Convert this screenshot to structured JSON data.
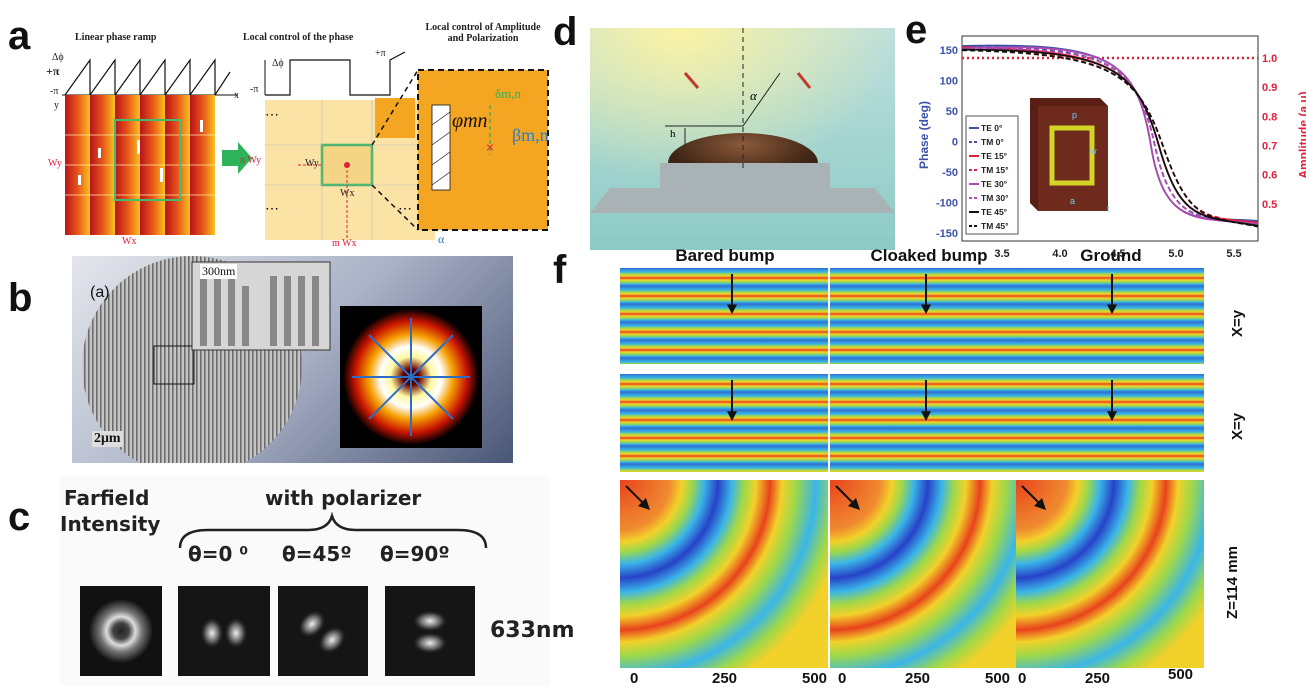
{
  "panel_labels": {
    "a": "a",
    "b": "b",
    "c": "c",
    "d": "d",
    "e": "e",
    "f": "f"
  },
  "panel_a": {
    "title1": "Linear phase ramp",
    "title2": "Local control of the phase",
    "title3": "Local control of Amplitude and Polarization",
    "dphi": "Δϕ",
    "plus_pi": "+π",
    "minus_pi": "-π",
    "x": "x",
    "y": "y",
    "wy": "Wy",
    "wx": "Wx",
    "n_wy": "n Wy",
    "m_wx": "m Wx",
    "delta": "δm,n",
    "phi": "φmn",
    "beta": "βm,n",
    "alpha": "α",
    "dots": "⋯"
  },
  "panel_b": {
    "sub": "(a)",
    "scale1": "300nm",
    "scale2": "2μm"
  },
  "panel_c": {
    "farfield": "Farfield",
    "intensity": "Intensity",
    "polarizer": "with polarizer",
    "theta0": "θ=0 ⁰",
    "theta45": "θ=45º",
    "theta90": "θ=90º",
    "wavelength": "633nm"
  },
  "panel_d": {
    "alpha": "α",
    "h": "h"
  },
  "panel_e": {
    "ylabel_left": "Phase (deg)",
    "ylabel_right": "Amplitude (a.u)",
    "yticks_left": [
      "150",
      "100",
      "50",
      "0",
      "-50",
      "-100",
      "-150"
    ],
    "yticks_right": [
      "1.0",
      "0.9",
      "0.8",
      "0.7",
      "0.6",
      "0.5"
    ],
    "xticks": [
      "3.5",
      "4.0",
      "4.5",
      "5.0",
      "5.5"
    ],
    "legend": [
      {
        "label": "TE 0°",
        "color": "#3a52a8",
        "dash": false
      },
      {
        "label": "TM 0°",
        "color": "#3a52a8",
        "dash": true
      },
      {
        "label": "TE 15°",
        "color": "#e0203a",
        "dash": false
      },
      {
        "label": "TM 15°",
        "color": "#e0203a",
        "dash": true
      },
      {
        "label": "TE 30°",
        "color": "#b04cb0",
        "dash": false
      },
      {
        "label": "TM 30°",
        "color": "#b04cb0",
        "dash": true
      },
      {
        "label": "TE 45°",
        "color": "#111111",
        "dash": false
      },
      {
        "label": "TM 45°",
        "color": "#111111",
        "dash": true
      }
    ],
    "inset": {
      "p": "p",
      "w": "w",
      "a": "a",
      "t": "t"
    }
  },
  "panel_f": {
    "col_titles": [
      "Bared bump",
      "Cloaked bump",
      "Ground"
    ],
    "row_labels": [
      "X=y",
      "X=y",
      "Z=114 mm"
    ],
    "xticks": [
      "0",
      "250",
      "500"
    ]
  },
  "colors": {
    "orange": "#f4a623",
    "dark_red": "#b8141a",
    "green_arrow": "#2eb35a",
    "purple": "#4b3c95",
    "red": "#e0203a"
  }
}
